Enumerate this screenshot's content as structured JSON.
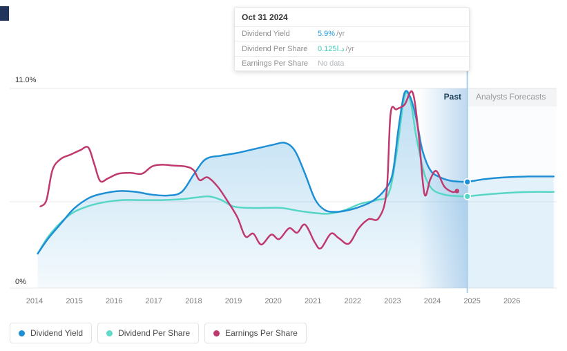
{
  "tooltip": {
    "date": "Oct 31 2024",
    "rows": [
      {
        "label": "Dividend Yield",
        "value": "5.9%",
        "suffix": "/yr",
        "color": "#1e9bd7"
      },
      {
        "label": "Dividend Per Share",
        "value": "0.125د.ا",
        "suffix": "/yr",
        "color": "#3fc9b9"
      },
      {
        "label": "Earnings Per Share",
        "value": "No data",
        "suffix": "",
        "color": "#b4b9bd"
      }
    ]
  },
  "axis": {
    "y_top_label": "11.0%",
    "y_bottom_label": "0%",
    "years": [
      "2014",
      "2015",
      "2016",
      "2017",
      "2018",
      "2019",
      "2020",
      "2021",
      "2022",
      "2023",
      "2024",
      "2025",
      "2026"
    ]
  },
  "regions": {
    "past_label": "Past",
    "forecast_label": "Analysts Forecasts"
  },
  "legend": [
    {
      "label": "Dividend Yield",
      "color": "#1e8fd5"
    },
    {
      "label": "Dividend Per Share",
      "color": "#60dac9"
    },
    {
      "label": "Earnings Per Share",
      "color": "#c0396e"
    }
  ],
  "colors": {
    "dividend_yield": "#1e8fd5",
    "dividend_per_share": "#57d6c6",
    "earnings_per_share": "#c0396e",
    "divider": "#a9cfeb",
    "gridline": "#e8e8e8",
    "past_band": "#7fb3e0",
    "forecast_bg": "#fafcfe"
  },
  "chart_data": {
    "type": "line",
    "title": "Dividend yield, dividend per share and earnings per share — history and analyst forecasts",
    "x_unit": "year",
    "x_range": [
      2013.4,
      2027.1
    ],
    "y_range": [
      0,
      11
    ],
    "ylabels": {
      "top": "11.0%",
      "bottom": "0%"
    },
    "y_gridlines": [
      0,
      4.76,
      11
    ],
    "divider_x": 2024.88,
    "past_band_start": 2023.65,
    "legend_position": "bottom-left",
    "series": [
      {
        "name": "Dividend Yield",
        "color": "#1e8fd5",
        "area": true,
        "end_dot": true,
        "points": [
          [
            2014.08,
            1.9
          ],
          [
            2014.35,
            2.75
          ],
          [
            2014.7,
            3.65
          ],
          [
            2015.0,
            4.4
          ],
          [
            2015.4,
            5.0
          ],
          [
            2015.8,
            5.25
          ],
          [
            2016.15,
            5.35
          ],
          [
            2016.55,
            5.3
          ],
          [
            2016.95,
            5.15
          ],
          [
            2017.35,
            5.1
          ],
          [
            2017.7,
            5.3
          ],
          [
            2018.0,
            6.25
          ],
          [
            2018.3,
            7.1
          ],
          [
            2018.7,
            7.3
          ],
          [
            2019.1,
            7.45
          ],
          [
            2019.6,
            7.7
          ],
          [
            2020.0,
            7.9
          ],
          [
            2020.3,
            8.0
          ],
          [
            2020.55,
            7.55
          ],
          [
            2020.8,
            6.3
          ],
          [
            2021.05,
            4.9
          ],
          [
            2021.3,
            4.3
          ],
          [
            2021.6,
            4.2
          ],
          [
            2021.9,
            4.3
          ],
          [
            2022.2,
            4.5
          ],
          [
            2022.5,
            4.8
          ],
          [
            2022.8,
            5.4
          ],
          [
            2023.0,
            6.3
          ],
          [
            2023.15,
            8.8
          ],
          [
            2023.3,
            10.75
          ],
          [
            2023.45,
            10.5
          ],
          [
            2023.6,
            9.3
          ],
          [
            2023.75,
            7.6
          ],
          [
            2023.95,
            6.5
          ],
          [
            2024.2,
            6.1
          ],
          [
            2024.5,
            5.9
          ],
          [
            2024.88,
            5.85
          ]
        ],
        "forecast_points": [
          [
            2024.88,
            5.85
          ],
          [
            2025.3,
            6.0
          ],
          [
            2025.8,
            6.1
          ],
          [
            2026.4,
            6.15
          ],
          [
            2027.05,
            6.15
          ]
        ]
      },
      {
        "name": "Dividend Per Share",
        "color": "#57d6c6",
        "area": false,
        "end_dot": true,
        "points": [
          [
            2014.08,
            1.9
          ],
          [
            2014.35,
            2.85
          ],
          [
            2014.7,
            3.7
          ],
          [
            2015.0,
            4.2
          ],
          [
            2015.4,
            4.55
          ],
          [
            2015.8,
            4.75
          ],
          [
            2016.2,
            4.85
          ],
          [
            2016.7,
            4.85
          ],
          [
            2017.2,
            4.85
          ],
          [
            2017.7,
            4.9
          ],
          [
            2018.1,
            5.0
          ],
          [
            2018.4,
            5.05
          ],
          [
            2018.7,
            4.85
          ],
          [
            2019.0,
            4.5
          ],
          [
            2019.4,
            4.42
          ],
          [
            2019.8,
            4.42
          ],
          [
            2020.2,
            4.42
          ],
          [
            2020.6,
            4.27
          ],
          [
            2021.0,
            4.15
          ],
          [
            2021.4,
            4.1
          ],
          [
            2021.8,
            4.3
          ],
          [
            2022.2,
            4.65
          ],
          [
            2022.6,
            4.85
          ],
          [
            2022.9,
            5.2
          ],
          [
            2023.1,
            7.4
          ],
          [
            2023.3,
            10.55
          ],
          [
            2023.45,
            10.3
          ],
          [
            2023.6,
            8.3
          ],
          [
            2023.8,
            6.3
          ],
          [
            2024.0,
            5.45
          ],
          [
            2024.3,
            5.15
          ],
          [
            2024.6,
            5.07
          ],
          [
            2024.88,
            5.05
          ]
        ],
        "forecast_points": [
          [
            2024.88,
            5.05
          ],
          [
            2025.3,
            5.15
          ],
          [
            2025.9,
            5.25
          ],
          [
            2026.5,
            5.3
          ],
          [
            2027.05,
            5.3
          ]
        ]
      },
      {
        "name": "Earnings Per Share",
        "color": "#c0396e",
        "area": false,
        "end_dot": true,
        "points": [
          [
            2014.15,
            4.5
          ],
          [
            2014.3,
            4.85
          ],
          [
            2014.45,
            6.5
          ],
          [
            2014.65,
            7.1
          ],
          [
            2014.9,
            7.35
          ],
          [
            2015.15,
            7.6
          ],
          [
            2015.35,
            7.75
          ],
          [
            2015.5,
            6.85
          ],
          [
            2015.65,
            5.9
          ],
          [
            2015.85,
            6.05
          ],
          [
            2016.1,
            6.3
          ],
          [
            2016.4,
            6.35
          ],
          [
            2016.7,
            6.3
          ],
          [
            2016.95,
            6.7
          ],
          [
            2017.2,
            6.8
          ],
          [
            2017.5,
            6.75
          ],
          [
            2017.8,
            6.7
          ],
          [
            2018.0,
            6.5
          ],
          [
            2018.15,
            5.95
          ],
          [
            2018.35,
            6.1
          ],
          [
            2018.6,
            5.6
          ],
          [
            2018.85,
            4.8
          ],
          [
            2019.1,
            3.9
          ],
          [
            2019.3,
            2.85
          ],
          [
            2019.5,
            3.0
          ],
          [
            2019.7,
            2.4
          ],
          [
            2019.95,
            2.95
          ],
          [
            2020.15,
            2.7
          ],
          [
            2020.4,
            3.3
          ],
          [
            2020.6,
            3.05
          ],
          [
            2020.8,
            3.5
          ],
          [
            2021.05,
            2.5
          ],
          [
            2021.2,
            2.2
          ],
          [
            2021.45,
            3.0
          ],
          [
            2021.65,
            2.75
          ],
          [
            2021.9,
            2.45
          ],
          [
            2022.15,
            3.3
          ],
          [
            2022.4,
            3.8
          ],
          [
            2022.65,
            3.85
          ],
          [
            2022.85,
            5.3
          ],
          [
            2022.95,
            9.6
          ],
          [
            2023.1,
            9.85
          ],
          [
            2023.3,
            10.1
          ],
          [
            2023.5,
            10.8
          ],
          [
            2023.65,
            8.6
          ],
          [
            2023.8,
            5.2
          ],
          [
            2023.95,
            6.0
          ],
          [
            2024.1,
            6.45
          ],
          [
            2024.3,
            5.6
          ],
          [
            2024.5,
            5.3
          ],
          [
            2024.62,
            5.35
          ]
        ],
        "forecast_points": []
      }
    ]
  }
}
